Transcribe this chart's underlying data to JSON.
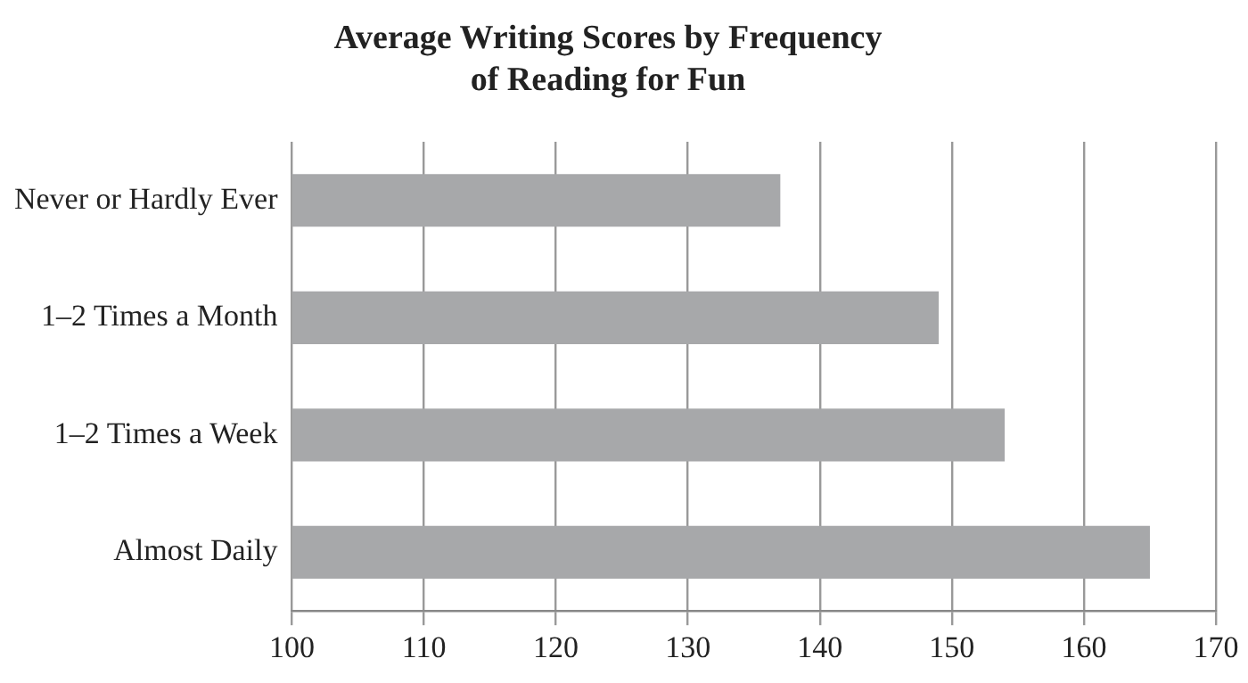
{
  "chart_data": {
    "type": "bar",
    "orientation": "horizontal",
    "title": [
      "Average Writing Scores by Frequency",
      "of Reading for Fun"
    ],
    "categories": [
      "Never or Hardly Ever",
      "1–2 Times a Month",
      "1–2 Times a Week",
      "Almost Daily"
    ],
    "values": [
      137,
      149,
      154,
      165
    ],
    "color": "#a7a8aa",
    "xlim": [
      100,
      170
    ],
    "xticks": [
      100,
      110,
      120,
      130,
      140,
      150,
      160,
      170
    ],
    "grid": "x",
    "legend": false
  }
}
